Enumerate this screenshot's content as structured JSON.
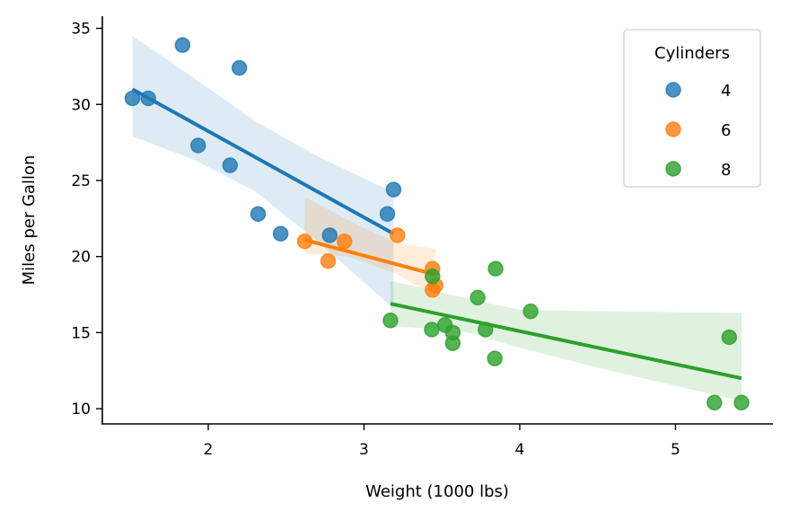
{
  "chart_data": {
    "type": "scatter",
    "xlabel": "Weight (1000 lbs)",
    "ylabel": "Miles per Gallon",
    "xlim": [
      1.32,
      5.62
    ],
    "ylim": [
      9.0,
      35.8
    ],
    "xticks": [
      2,
      3,
      4,
      5
    ],
    "yticks": [
      10,
      15,
      20,
      25,
      30,
      35
    ],
    "grid": false,
    "legend": {
      "title": "Cylinders",
      "placement": "top-right"
    },
    "series": [
      {
        "name": "4",
        "color": "#1f77b4",
        "points": [
          {
            "x": 2.32,
            "y": 22.8
          },
          {
            "x": 3.19,
            "y": 24.4
          },
          {
            "x": 3.15,
            "y": 22.8
          },
          {
            "x": 2.2,
            "y": 32.4
          },
          {
            "x": 1.615,
            "y": 30.4
          },
          {
            "x": 1.835,
            "y": 33.9
          },
          {
            "x": 2.465,
            "y": 21.5
          },
          {
            "x": 1.935,
            "y": 27.3
          },
          {
            "x": 2.14,
            "y": 26.0
          },
          {
            "x": 1.513,
            "y": 30.4
          },
          {
            "x": 2.78,
            "y": 21.4
          }
        ],
        "fit": {
          "x": [
            1.513,
            3.19
          ],
          "y": [
            31.0,
            21.5
          ]
        },
        "ci": {
          "x": [
            1.513,
            1.9,
            2.3,
            2.7,
            3.19
          ],
          "upper": [
            34.5,
            31.8,
            28.9,
            26.6,
            24.2
          ],
          "lower": [
            27.9,
            26.4,
            24.3,
            21.0,
            16.6
          ]
        }
      },
      {
        "name": "6",
        "color": "#ff7f0e",
        "points": [
          {
            "x": 2.62,
            "y": 21.0
          },
          {
            "x": 2.875,
            "y": 21.0
          },
          {
            "x": 3.215,
            "y": 21.4
          },
          {
            "x": 3.46,
            "y": 18.1
          },
          {
            "x": 3.44,
            "y": 19.2
          },
          {
            "x": 3.44,
            "y": 17.8
          },
          {
            "x": 2.77,
            "y": 19.7
          }
        ],
        "fit": {
          "x": [
            2.62,
            3.46
          ],
          "y": [
            21.1,
            18.8
          ]
        },
        "ci": {
          "x": [
            2.62,
            2.9,
            3.2,
            3.46
          ],
          "upper": [
            23.9,
            22.4,
            20.9,
            20.5
          ],
          "lower": [
            20.2,
            20.0,
            18.9,
            17.4
          ]
        }
      },
      {
        "name": "8",
        "color": "#2ca02c",
        "points": [
          {
            "x": 3.44,
            "y": 18.7
          },
          {
            "x": 3.57,
            "y": 14.3
          },
          {
            "x": 4.07,
            "y": 16.4
          },
          {
            "x": 3.73,
            "y": 17.3
          },
          {
            "x": 3.78,
            "y": 15.2
          },
          {
            "x": 5.25,
            "y": 10.4
          },
          {
            "x": 5.424,
            "y": 10.4
          },
          {
            "x": 5.345,
            "y": 14.7
          },
          {
            "x": 3.52,
            "y": 15.5
          },
          {
            "x": 3.435,
            "y": 15.2
          },
          {
            "x": 3.84,
            "y": 13.3
          },
          {
            "x": 3.845,
            "y": 19.2
          },
          {
            "x": 3.17,
            "y": 15.8
          },
          {
            "x": 3.57,
            "y": 15.0
          }
        ],
        "fit": {
          "x": [
            3.17,
            5.424
          ],
          "y": [
            16.9,
            12.0
          ]
        },
        "ci": {
          "x": [
            3.17,
            3.6,
            4.0,
            4.5,
            5.424
          ],
          "upper": [
            18.4,
            17.4,
            16.5,
            16.4,
            16.3
          ],
          "lower": [
            15.4,
            15.2,
            14.0,
            12.7,
            10.5
          ]
        }
      }
    ]
  }
}
